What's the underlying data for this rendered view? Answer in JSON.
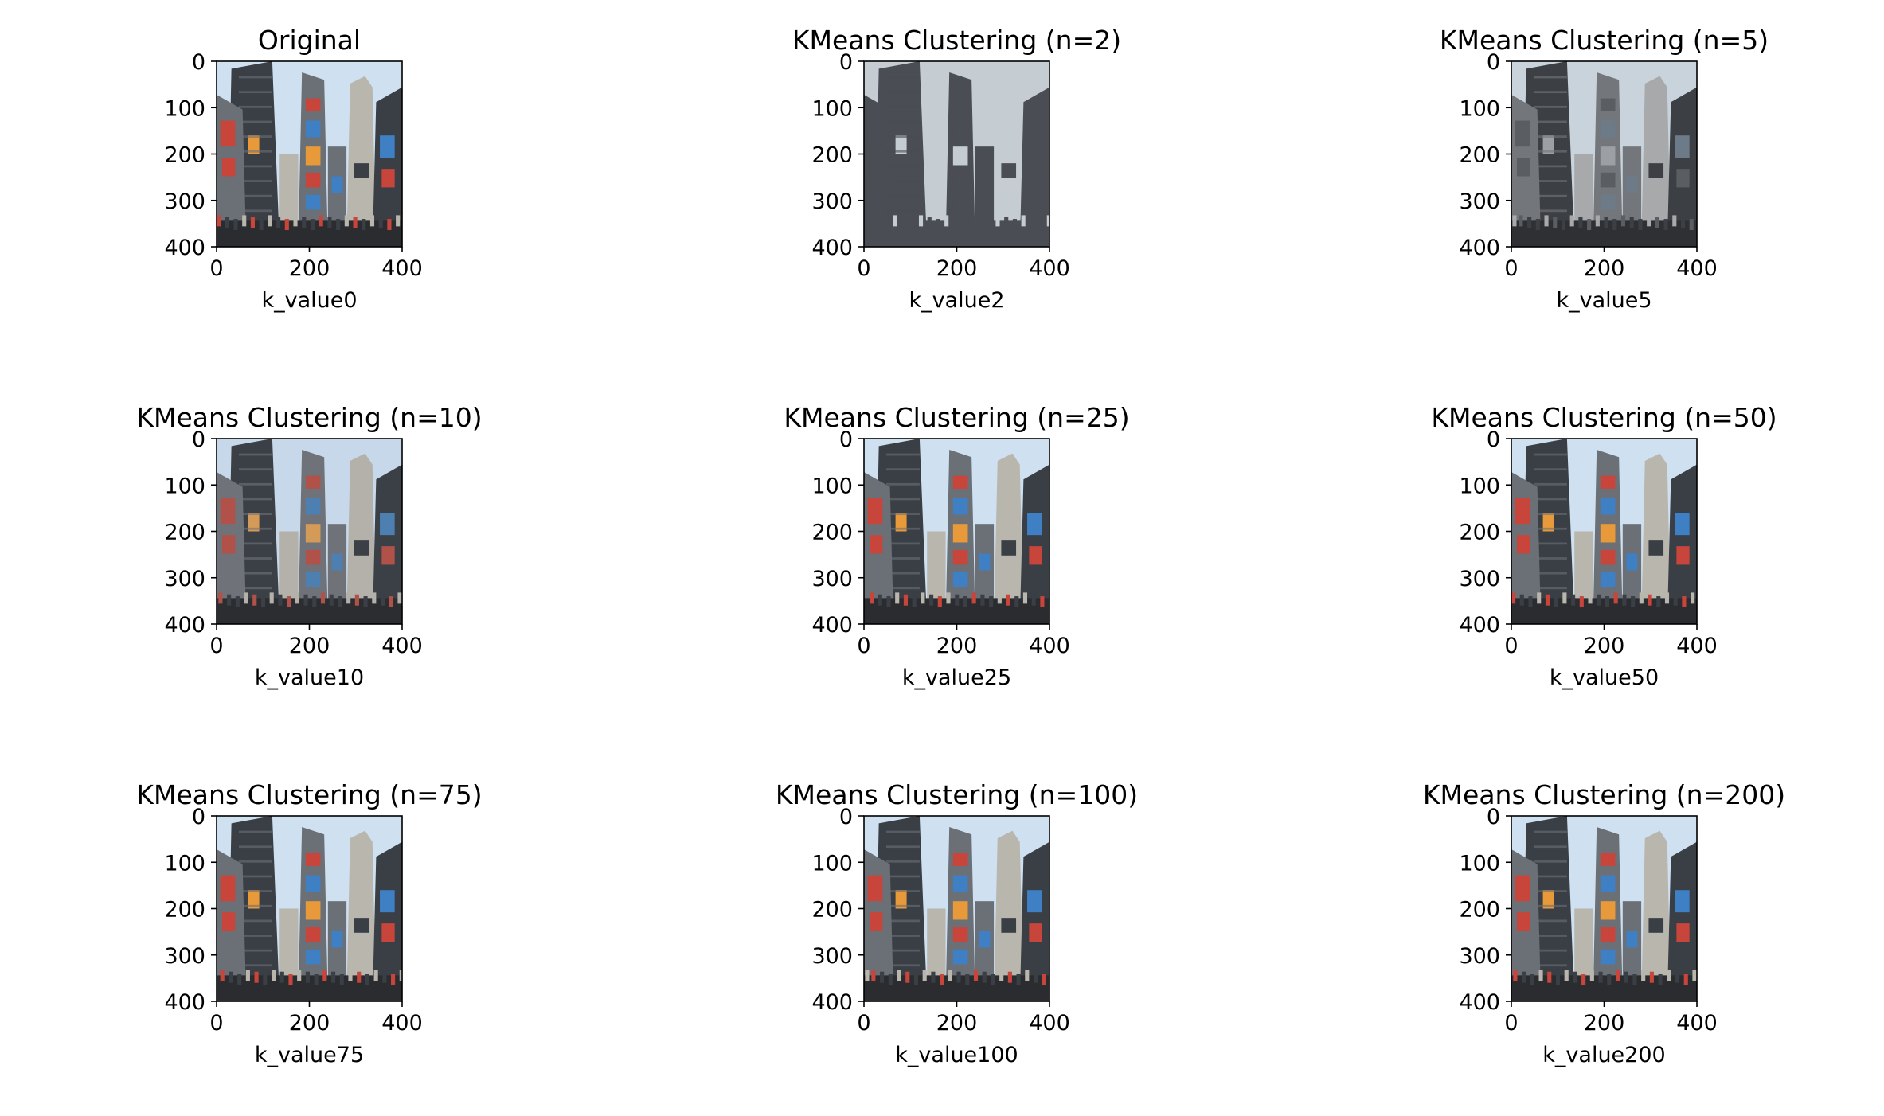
{
  "chart_data": {
    "type": "image-grid",
    "grid": {
      "rows": 3,
      "cols": 3
    },
    "axis": {
      "x_ticks": [
        "0",
        "200",
        "400"
      ],
      "y_ticks": [
        "0",
        "100",
        "200",
        "300",
        "400"
      ],
      "xlim": [
        0,
        400
      ],
      "ylim": [
        400,
        0
      ]
    },
    "panels": [
      {
        "title": "Original",
        "xlabel": "k_value0",
        "palette": "full"
      },
      {
        "title": "KMeans Clustering (n=2)",
        "xlabel": "k_value2",
        "palette": "two"
      },
      {
        "title": "KMeans Clustering (n=5)",
        "xlabel": "k_value5",
        "palette": "gray"
      },
      {
        "title": "KMeans Clustering (n=10)",
        "xlabel": "k_value10",
        "palette": "muted"
      },
      {
        "title": "KMeans Clustering (n=25)",
        "xlabel": "k_value25",
        "palette": "full"
      },
      {
        "title": "KMeans Clustering (n=50)",
        "xlabel": "k_value50",
        "palette": "full"
      },
      {
        "title": "KMeans Clustering (n=75)",
        "xlabel": "k_value75",
        "palette": "full"
      },
      {
        "title": "KMeans Clustering (n=100)",
        "xlabel": "k_value100",
        "palette": "full"
      },
      {
        "title": "KMeans Clustering (n=200)",
        "xlabel": "k_value200",
        "palette": "full"
      }
    ],
    "colors": {
      "sky": "#cfe0f0",
      "building_dark": "#3a3e45",
      "building_mid": "#6b6f76",
      "building_light": "#b9b6ad",
      "sign_red": "#c8453c",
      "sign_orange": "#e89a3a",
      "sign_blue": "#3f7fc4",
      "street": "#2a2c30",
      "two_dark": "#4a4d53",
      "two_light": "#c5ccd2"
    }
  }
}
